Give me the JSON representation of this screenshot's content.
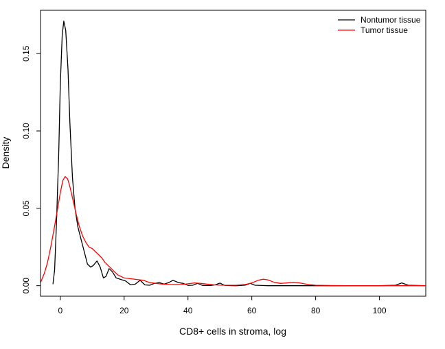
{
  "chart_data": {
    "type": "line",
    "title": "",
    "xlabel": "CD8+ cells in stroma, log",
    "ylabel": "Density",
    "xlim": [
      -6.2,
      114.5
    ],
    "ylim": [
      -0.0068,
      0.178
    ],
    "x_ticks": [
      0,
      20,
      40,
      60,
      80,
      100
    ],
    "y_ticks": [
      0.0,
      0.05,
      0.1,
      0.15
    ],
    "x_tick_labels": [
      "0",
      "20",
      "40",
      "60",
      "80",
      "100"
    ],
    "y_tick_labels": [
      "0.00",
      "0.05",
      "0.10",
      "0.15"
    ],
    "grid": false,
    "legend_position": "top-right",
    "series": [
      {
        "name": "Nontumor tissue",
        "color": "#000000",
        "points": [
          [
            -2.3,
            0.001
          ],
          [
            -1.8,
            0.01
          ],
          [
            -1.2,
            0.04
          ],
          [
            -0.5,
            0.085
          ],
          [
            0.0,
            0.13
          ],
          [
            0.6,
            0.162
          ],
          [
            1.1,
            0.171
          ],
          [
            1.7,
            0.165
          ],
          [
            2.4,
            0.14
          ],
          [
            3.0,
            0.105
          ],
          [
            3.8,
            0.07
          ],
          [
            4.6,
            0.05
          ],
          [
            5.5,
            0.038
          ],
          [
            6.5,
            0.03
          ],
          [
            7.5,
            0.022
          ],
          [
            8.5,
            0.014
          ],
          [
            9.5,
            0.012
          ],
          [
            10.3,
            0.013
          ],
          [
            11.5,
            0.016
          ],
          [
            12.5,
            0.012
          ],
          [
            13.5,
            0.005
          ],
          [
            14.3,
            0.006
          ],
          [
            15.3,
            0.011
          ],
          [
            16.3,
            0.009
          ],
          [
            17.5,
            0.005
          ],
          [
            19.0,
            0.004
          ],
          [
            20.5,
            0.003
          ],
          [
            22.0,
            0.0005
          ],
          [
            23.5,
            0.001
          ],
          [
            25.0,
            0.0035
          ],
          [
            26.5,
            0.0005
          ],
          [
            28.0,
            0.0003
          ],
          [
            29.5,
            0.0015
          ],
          [
            31.0,
            0.002
          ],
          [
            32.5,
            0.001
          ],
          [
            34.0,
            0.002
          ],
          [
            35.3,
            0.0035
          ],
          [
            37.0,
            0.002
          ],
          [
            38.5,
            0.0015
          ],
          [
            40.0,
            0.0002
          ],
          [
            41.5,
            0.0003
          ],
          [
            43.0,
            0.0015
          ],
          [
            44.5,
            0.0002
          ],
          [
            47.0,
            0.0001
          ],
          [
            48.5,
            0.0005
          ],
          [
            50.0,
            0.0017
          ],
          [
            51.5,
            0.0002
          ],
          [
            55.0,
            0.0
          ],
          [
            58.0,
            0.0004
          ],
          [
            59.5,
            0.0015
          ],
          [
            61.0,
            0.0003
          ],
          [
            65.0,
            0.0
          ],
          [
            70.0,
            0.0
          ],
          [
            80.0,
            0.0
          ],
          [
            90.0,
            0.0
          ],
          [
            100.0,
            0.0
          ],
          [
            105.0,
            0.0003
          ],
          [
            107.0,
            0.0018
          ],
          [
            109.0,
            0.0003
          ],
          [
            114.5,
            0.0
          ]
        ]
      },
      {
        "name": "Tumor tissue",
        "color": "#ff0000",
        "points": [
          [
            -6.2,
            0.002
          ],
          [
            -5.0,
            0.008
          ],
          [
            -4.0,
            0.015
          ],
          [
            -3.0,
            0.025
          ],
          [
            -2.0,
            0.036
          ],
          [
            -1.0,
            0.048
          ],
          [
            0.0,
            0.06
          ],
          [
            0.8,
            0.068
          ],
          [
            1.5,
            0.0705
          ],
          [
            2.3,
            0.069
          ],
          [
            3.0,
            0.064
          ],
          [
            4.0,
            0.055
          ],
          [
            5.0,
            0.046
          ],
          [
            6.0,
            0.038
          ],
          [
            7.0,
            0.032
          ],
          [
            8.0,
            0.028
          ],
          [
            9.0,
            0.025
          ],
          [
            10.0,
            0.024
          ],
          [
            11.0,
            0.022
          ],
          [
            12.0,
            0.02
          ],
          [
            13.0,
            0.018
          ],
          [
            14.0,
            0.015
          ],
          [
            15.0,
            0.013
          ],
          [
            16.0,
            0.011
          ],
          [
            17.0,
            0.009
          ],
          [
            18.0,
            0.007
          ],
          [
            19.0,
            0.006
          ],
          [
            20.0,
            0.005
          ],
          [
            22.0,
            0.0045
          ],
          [
            24.0,
            0.004
          ],
          [
            26.0,
            0.0035
          ],
          [
            28.0,
            0.002
          ],
          [
            30.0,
            0.0015
          ],
          [
            32.0,
            0.001
          ],
          [
            34.0,
            0.0008
          ],
          [
            36.0,
            0.0006
          ],
          [
            38.0,
            0.0008
          ],
          [
            40.0,
            0.0012
          ],
          [
            42.0,
            0.0018
          ],
          [
            44.0,
            0.0015
          ],
          [
            46.0,
            0.001
          ],
          [
            48.0,
            0.0006
          ],
          [
            50.0,
            0.0004
          ],
          [
            52.0,
            0.0003
          ],
          [
            55.0,
            0.0003
          ],
          [
            58.0,
            0.0008
          ],
          [
            60.0,
            0.0018
          ],
          [
            62.0,
            0.0035
          ],
          [
            63.5,
            0.0042
          ],
          [
            65.0,
            0.0038
          ],
          [
            67.0,
            0.0022
          ],
          [
            69.0,
            0.0015
          ],
          [
            71.0,
            0.0018
          ],
          [
            73.0,
            0.0022
          ],
          [
            75.0,
            0.0018
          ],
          [
            77.0,
            0.001
          ],
          [
            80.0,
            0.0003
          ],
          [
            85.0,
            0.0001
          ],
          [
            90.0,
            0.0
          ],
          [
            100.0,
            0.0
          ],
          [
            114.5,
            0.0
          ]
        ]
      }
    ]
  }
}
